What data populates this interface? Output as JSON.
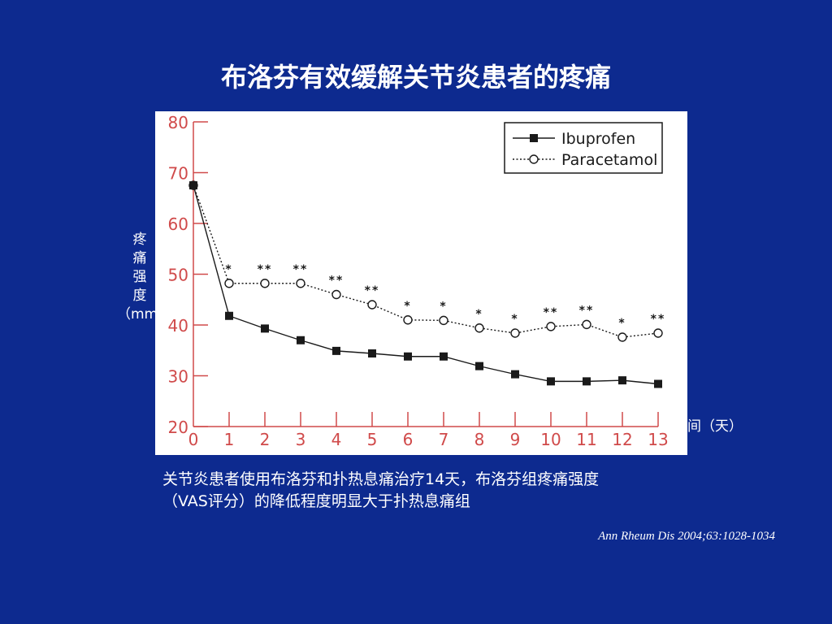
{
  "slide": {
    "title": "布洛芬有效缓解关节炎患者的疼痛",
    "caption_line1": "关节炎患者使用布洛芬和扑热息痛治疗14天，布洛芬组疼痛强度",
    "caption_line2": "（VAS评分）的降低程度明显大于扑热息痛组",
    "citation": "Ann Rheum Dis 2004;63:1028-1034"
  },
  "axis_labels": {
    "y_chars": [
      "疼",
      "痛",
      "强",
      "度",
      "（mm）"
    ],
    "x_visible": "间（天）"
  },
  "colors": {
    "background": "#0d2a8f",
    "axis": "#d04a4a",
    "series": "#1a1a1a"
  },
  "chart_data": {
    "type": "line",
    "title": "",
    "ylabel": "疼痛强度（mm）",
    "xlabel": "间（天）",
    "x": [
      0,
      1,
      2,
      3,
      4,
      5,
      6,
      7,
      8,
      9,
      10,
      11,
      12,
      13
    ],
    "xticks": [
      "0",
      "1",
      "2",
      "3",
      "4",
      "5",
      "6",
      "7",
      "8",
      "9",
      "10",
      "11",
      "12",
      "13"
    ],
    "yticks": [
      "20",
      "30",
      "40",
      "50",
      "60",
      "70",
      "80"
    ],
    "ylim": [
      20,
      80
    ],
    "xlim": [
      0,
      13
    ],
    "grid": false,
    "legend_position": "top-right",
    "series": [
      {
        "name": "Ibuprofen",
        "marker": "filled-square",
        "line": "solid",
        "values": [
          67.5,
          41.8,
          39.3,
          37.0,
          34.9,
          34.4,
          33.8,
          33.8,
          31.9,
          30.3,
          28.9,
          28.9,
          29.1,
          28.4
        ]
      },
      {
        "name": "Paracetamol",
        "marker": "open-circle",
        "line": "dotted",
        "values": [
          67.5,
          48.2,
          48.2,
          48.2,
          46.0,
          44.0,
          41.0,
          40.9,
          39.4,
          38.4,
          39.7,
          40.1,
          37.6,
          38.4
        ]
      }
    ],
    "significance": [
      "",
      "*",
      "**",
      "**",
      "**",
      "**",
      "*",
      "*",
      "*",
      "*",
      "**",
      "**",
      "*",
      "**"
    ]
  }
}
